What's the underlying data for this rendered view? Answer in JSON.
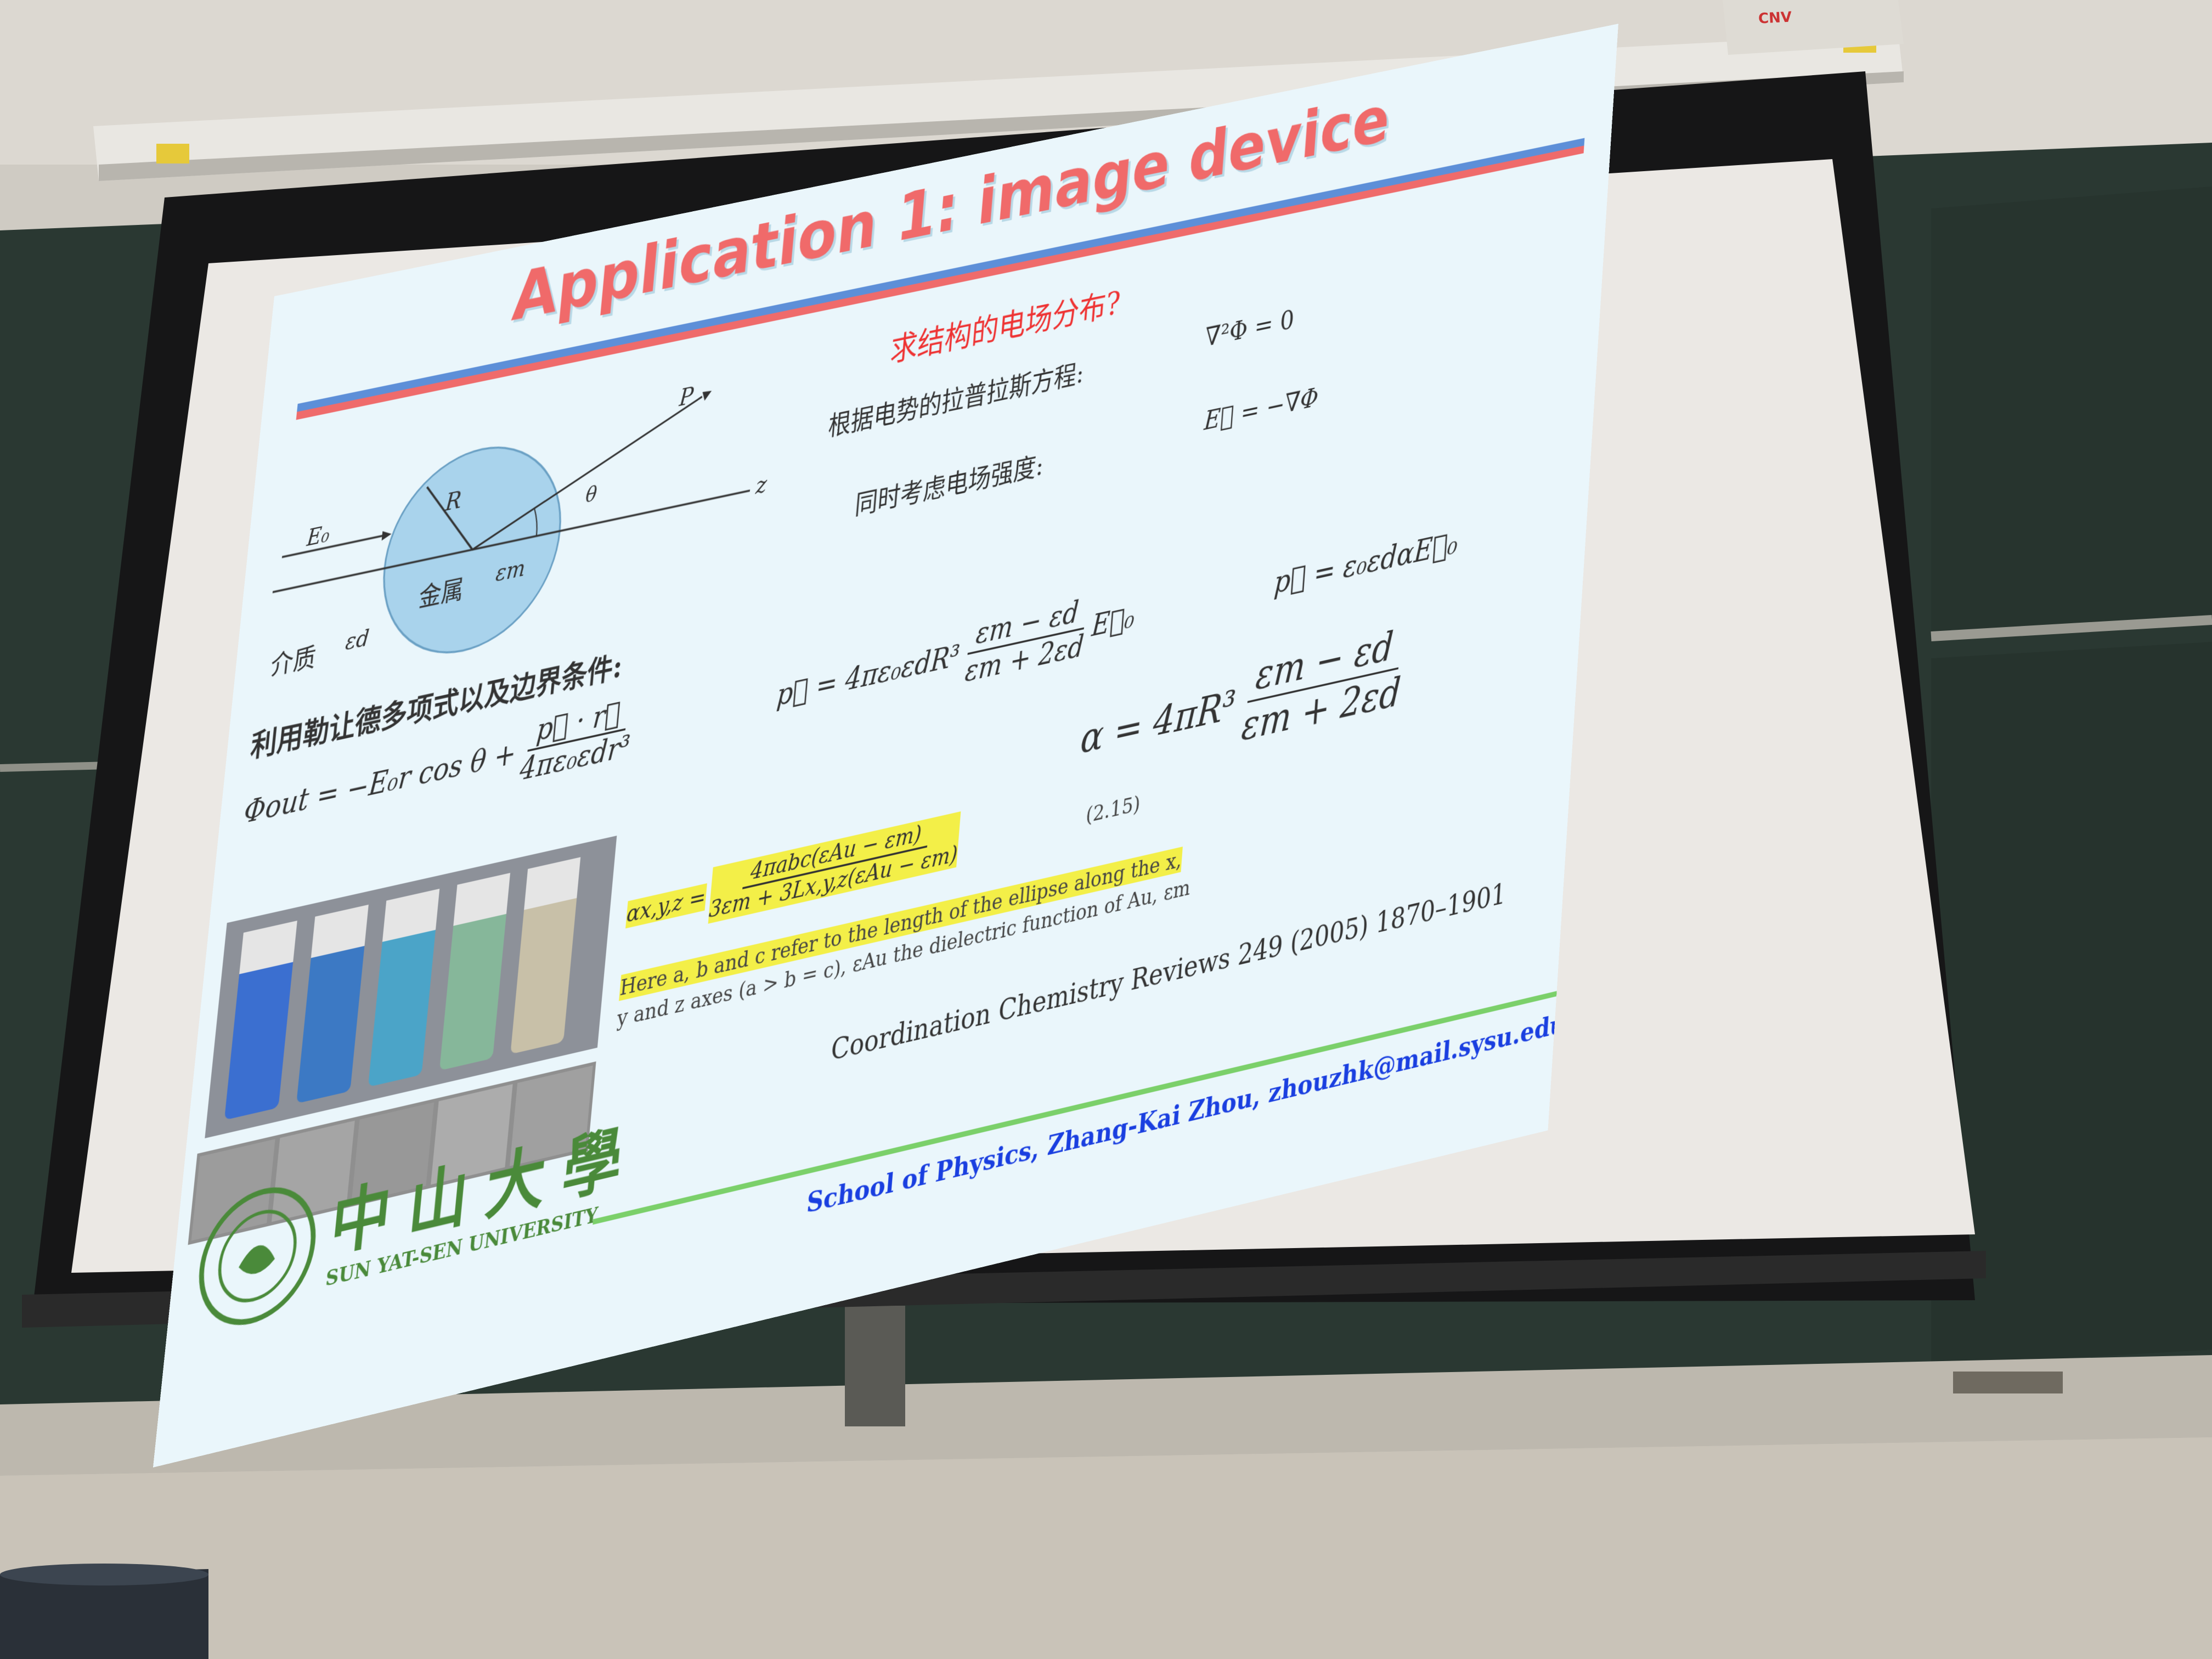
{
  "slide": {
    "title": "Application 1: image device",
    "question": "求结构的电场分布?",
    "laplace_label": "根据电势的拉普拉斯方程:",
    "laplace_eq": "∇²Φ = 0",
    "field_label": "同时考虑电场强度:",
    "field_eq": "E⃗ = −∇Φ",
    "diagram": {
      "e0": "E₀",
      "p": "P",
      "r": "R",
      "theta": "θ",
      "z": "z",
      "metal": "金属",
      "eps_m": "εm",
      "medium": "介质",
      "eps_d": "εd"
    },
    "legendre_label": "利用勒让德多项式以及边界条件:",
    "phi_out_lhs": "Φout = −E₀r cos θ +",
    "phi_out_num": "p⃗ · r⃗",
    "phi_out_den": "4πε₀εdr³",
    "p_lhs": "p⃗ = 4πε₀εdR³",
    "p_num": "εm − εd",
    "p_den": "εm + 2εd",
    "p_rhs": "E⃗₀",
    "p2_eq": "p⃗ = ε₀εdαE⃗₀",
    "alpha_lhs": "α = 4πR³",
    "alpha_num": "εm − εd",
    "alpha_den": "εm + 2εd",
    "alpha_xyz_lhs": "αx,y,z =",
    "alpha_xyz_num": "4πabc(εAu − εm)",
    "alpha_xyz_den": "3εm + 3Lx,y,z(εAu − εm)",
    "eq_number": "(2.15)",
    "note_line1": "Here a, b and c refer to the length of the ellipse along the x,",
    "note_line2": "y and z axes (a > b = c), εAu the dielectric function of Au, εm",
    "reference": "Coordination Chemistry Reviews 249 (2005) 1870–1901",
    "univ_cn": "中山大學",
    "univ_en": "SUN YAT-SEN UNIVERSITY",
    "footer": "School of Physics, Zhang-Kai Zhou, zhouzhk@mail.sysu.edu.cn"
  },
  "projector_brand": "CNV",
  "colors": {
    "title": "#f06a6a",
    "bar_blue": "#5d8fd8",
    "bar_red": "#ef6b6b",
    "highlight": "#f3ef48",
    "footer": "#1a3fe0",
    "logo": "#4a8a3a",
    "chalkboard": "#2c3a34"
  }
}
